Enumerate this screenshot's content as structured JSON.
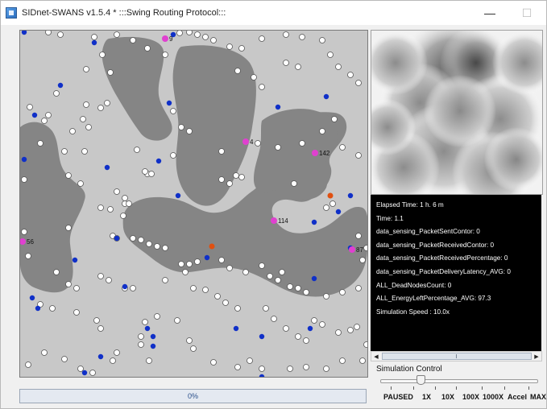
{
  "window": {
    "title": "SIDnet-SWANS v1.5.4 * :::Swing Routing Protocol:::",
    "minimize_glyph": "—",
    "maximize_glyph": "☐"
  },
  "progress": {
    "label": "0%",
    "value": 0
  },
  "console": {
    "lines": [
      "Elapsed Time: 1 h. 6 m",
      "Time: 1.1",
      "data_sensing_PacketSentContor: 0",
      "data_sensing_PacketReceivedContor: 0",
      "data_sensing_PacketReceivedPercentage: 0",
      "data_sensing_PacketDeliveryLatency_AVG: 0",
      "ALL_DeadNodesCount: 0",
      "ALL_EnergyLeftPercentage_AVG: 97.3",
      "Simulation Speed : 10.0x"
    ]
  },
  "simulation_control": {
    "label": "Simulation Control",
    "speed_options": [
      "PAUSED",
      "1X",
      "10X",
      "100X",
      "1000X",
      "Accel",
      "MAX"
    ],
    "selected": "10X"
  },
  "field": {
    "node_labels": [
      "9",
      "4",
      "142",
      "114",
      "56",
      "87"
    ],
    "colors": {
      "background": "#c8c8c8",
      "obstacle": "#858585",
      "sensor_node": "#ffffff",
      "sink_node": "#1030c8",
      "labeled_node": "#e040d0",
      "alert_node": "#e05010"
    }
  }
}
